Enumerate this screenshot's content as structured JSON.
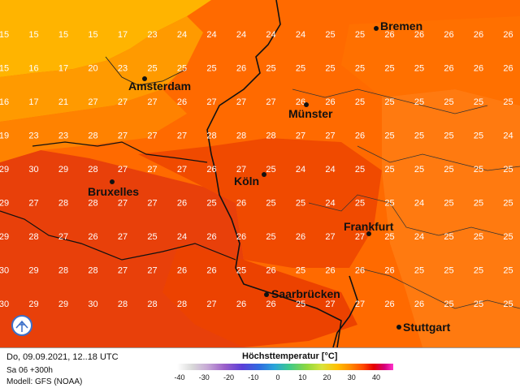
{
  "cities": [
    {
      "name": "Bremen"
    },
    {
      "name": "Amsterdam"
    },
    {
      "name": "Münster"
    },
    {
      "name": "Köln"
    },
    {
      "name": "Bruxelles"
    },
    {
      "name": "Frankfurt"
    },
    {
      "name": "Saarbrücken"
    },
    {
      "name": "Stuttgart"
    }
  ],
  "grid_values": [
    [
      15,
      15,
      15,
      15,
      17,
      23,
      24,
      24,
      24,
      24,
      24,
      25,
      25,
      26,
      26,
      26,
      26,
      26
    ],
    [
      15,
      16,
      17,
      20,
      23,
      25,
      25,
      25,
      26,
      25,
      25,
      25,
      25,
      25,
      25,
      26,
      26,
      26
    ],
    [
      16,
      17,
      21,
      27,
      27,
      27,
      26,
      27,
      27,
      27,
      26,
      26,
      25,
      25,
      25,
      25,
      25,
      25
    ],
    [
      19,
      23,
      23,
      28,
      27,
      27,
      27,
      28,
      28,
      28,
      27,
      27,
      26,
      25,
      25,
      25,
      25,
      24
    ],
    [
      29,
      30,
      29,
      28,
      27,
      27,
      27,
      26,
      27,
      25,
      24,
      24,
      25,
      25,
      25,
      25,
      25,
      25
    ],
    [
      29,
      27,
      28,
      28,
      27,
      27,
      26,
      25,
      26,
      25,
      25,
      24,
      25,
      25,
      24,
      25,
      25,
      25
    ],
    [
      29,
      28,
      27,
      26,
      27,
      25,
      24,
      26,
      26,
      25,
      26,
      27,
      27,
      25,
      24,
      25,
      25,
      25
    ],
    [
      30,
      29,
      28,
      28,
      27,
      27,
      26,
      26,
      25,
      26,
      25,
      26,
      26,
      26,
      25,
      25,
      25,
      25
    ],
    [
      30,
      29,
      29,
      30,
      28,
      28,
      28,
      27,
      26,
      26,
      25,
      27,
      27,
      26,
      26,
      25,
      25,
      25
    ]
  ],
  "footer": {
    "date_line": "Do, 09.09.2021, 12..18 UTC",
    "run_line": "Sa 06 +300h",
    "model_line": "Modell: GFS (NOAA)"
  },
  "legend": {
    "title": "Höchsttemperatur [°C]",
    "ticks": [
      "-40",
      "-30",
      "-20",
      "-10",
      "0",
      "10",
      "20",
      "30",
      "40"
    ]
  },
  "colors": {
    "hot": "#e53800",
    "warm": "#ff5a00",
    "mild": "#ff7800",
    "cool": "#ffa000",
    "coast": "#ffc000"
  }
}
